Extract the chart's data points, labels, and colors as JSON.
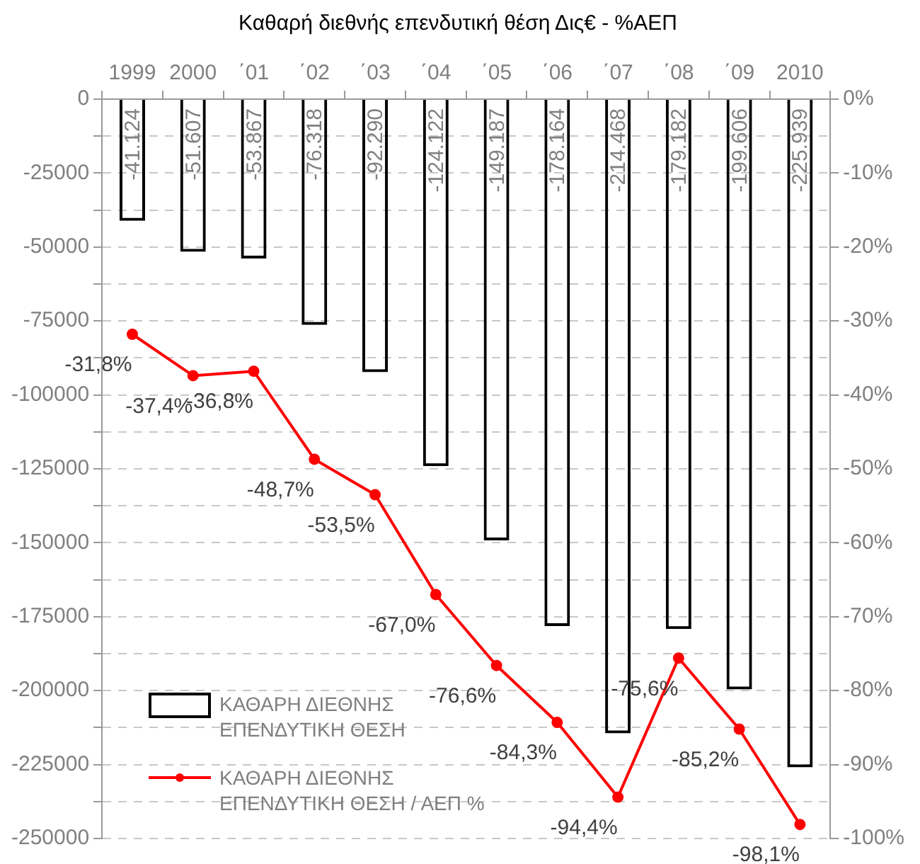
{
  "chart_data": {
    "type": "bar",
    "title": "Καθαρή διεθνής επενδυτική θέση Δις€ - %ΑΕΠ",
    "categories": [
      "1999",
      "2000",
      "΄01",
      "΄02",
      "΄03",
      "΄04",
      "΄05",
      "΄06",
      "΄07",
      "΄08",
      "΄09",
      "2010"
    ],
    "series": [
      {
        "name": "ΚΑΘΑΡΗ ΔΙΕΘΝΗΣ ΕΠΕΝΔΥΤΙΚΗ ΘΕΣΗ",
        "color": "#000000",
        "values": [
          -41124,
          -51607,
          -53867,
          -76318,
          -92290,
          -124122,
          -149187,
          -178164,
          -214468,
          -179182,
          -199606,
          -225939
        ],
        "value_labels": [
          "-41.124",
          "-51.607",
          "-53.867",
          "-76.318",
          "-92.290",
          "-124.122",
          "-149.187",
          "-178.164",
          "-214.468",
          "-179.182",
          "-199.606",
          "-225.939"
        ]
      },
      {
        "name": "ΚΑΘΑΡΗ ΔΙΕΘΝΗΣ ΕΠΕΝΔΥΤΙΚΗ ΘΕΣΗ / ΑΕΠ %",
        "type": "line",
        "axis": "y2",
        "color": "#ff0000",
        "marker": "circle",
        "values": [
          -31.8,
          -37.4,
          -36.8,
          -48.7,
          -53.5,
          -67.0,
          -76.6,
          -84.3,
          -94.4,
          -75.6,
          -85.2,
          -98.1
        ],
        "value_labels": [
          "-31,8%",
          "-37,4%",
          "-36,8%",
          "-48,7%",
          "-53,5%",
          "-67,0%",
          "-76,6%",
          "-84,3%",
          "-94,4%",
          "-75,6%",
          "-85,2%",
          "-98,1%"
        ]
      }
    ],
    "ylim": [
      -250000,
      0
    ],
    "yticks": [
      0,
      {
        "value": -12500,
        "label": null
      },
      -25000,
      {
        "value": -37500,
        "label": null
      },
      -50000,
      {
        "value": -62500,
        "label": null
      },
      -75000,
      {
        "value": -87500,
        "label": null
      },
      -100000,
      {
        "value": -112500,
        "label": null
      },
      -125000,
      {
        "value": -137500,
        "label": null
      },
      -150000,
      {
        "value": -162500,
        "label": null
      },
      -175000,
      {
        "value": -187500,
        "label": null
      },
      -200000,
      {
        "value": -212500,
        "label": null
      },
      -225000,
      {
        "value": -237500,
        "label": null
      },
      -250000
    ],
    "y2lim": [
      -100,
      0
    ],
    "y2ticks": [
      {
        "value": 0,
        "label": "0%"
      },
      {
        "value": -10,
        "label": "-10%"
      },
      {
        "value": -20,
        "label": "-20%"
      },
      {
        "value": -30,
        "label": "-30%"
      },
      {
        "value": -40,
        "label": "-40%"
      },
      {
        "value": -50,
        "label": "-50%"
      },
      {
        "value": -60,
        "label": "-60%"
      },
      {
        "value": -70,
        "label": "-70%"
      },
      {
        "value": -80,
        "label": "-80%"
      },
      {
        "value": -90,
        "label": "-90%"
      },
      {
        "value": -100,
        "label": "-100%"
      }
    ],
    "grid": "y",
    "legend": "bottom left"
  }
}
